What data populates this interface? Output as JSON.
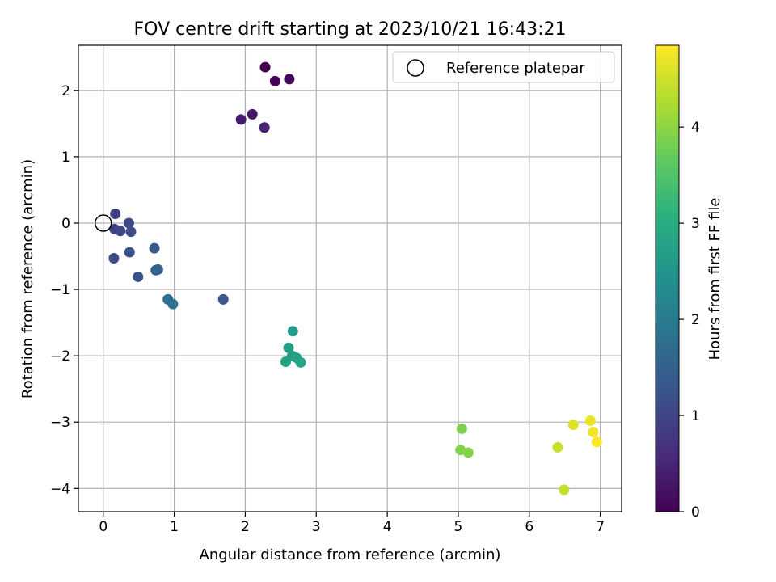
{
  "chart_data": {
    "type": "scatter",
    "title": "FOV centre drift starting at 2023/10/21 16:43:21",
    "xlabel": "Angular distance from reference (arcmin)",
    "ylabel": "Rotation from reference (arcmin)",
    "xlim": [
      -0.35,
      7.3
    ],
    "ylim": [
      -4.35,
      2.68
    ],
    "xticks": [
      0,
      1,
      2,
      3,
      4,
      5,
      6,
      7
    ],
    "yticks": [
      -4,
      -3,
      -2,
      -1,
      0,
      1,
      2
    ],
    "grid": true,
    "legend": {
      "position": "top-right",
      "entries": [
        "Reference platepar"
      ]
    },
    "reference_point": {
      "x": 0,
      "y": 0,
      "label": "Reference platepar"
    },
    "colorbar": {
      "label": "Hours from first FF file",
      "range": [
        0,
        4.85
      ],
      "ticks": [
        0,
        1,
        2,
        3,
        4
      ],
      "colormap": "viridis"
    },
    "points": [
      {
        "x": 2.28,
        "y": 2.35,
        "hours": 0.0
      },
      {
        "x": 2.42,
        "y": 2.14,
        "hours": 0.05
      },
      {
        "x": 2.62,
        "y": 2.17,
        "hours": 0.1
      },
      {
        "x": 2.1,
        "y": 1.64,
        "hours": 0.3
      },
      {
        "x": 1.94,
        "y": 1.56,
        "hours": 0.35
      },
      {
        "x": 2.27,
        "y": 1.44,
        "hours": 0.45
      },
      {
        "x": 0.17,
        "y": 0.14,
        "hours": 0.9
      },
      {
        "x": 0.16,
        "y": -0.09,
        "hours": 0.95
      },
      {
        "x": 0.24,
        "y": -0.12,
        "hours": 1.0
      },
      {
        "x": 0.36,
        "y": 0.0,
        "hours": 1.05
      },
      {
        "x": 0.39,
        "y": -0.13,
        "hours": 1.1
      },
      {
        "x": 0.15,
        "y": -0.53,
        "hours": 1.15
      },
      {
        "x": 0.37,
        "y": -0.44,
        "hours": 1.2
      },
      {
        "x": 0.49,
        "y": -0.81,
        "hours": 1.25
      },
      {
        "x": 0.72,
        "y": -0.38,
        "hours": 1.35
      },
      {
        "x": 0.74,
        "y": -0.71,
        "hours": 1.4
      },
      {
        "x": 0.77,
        "y": -0.7,
        "hours": 1.45
      },
      {
        "x": 1.69,
        "y": -1.15,
        "hours": 1.3
      },
      {
        "x": 0.91,
        "y": -1.15,
        "hours": 1.75
      },
      {
        "x": 0.98,
        "y": -1.22,
        "hours": 1.8
      },
      {
        "x": 2.67,
        "y": -1.63,
        "hours": 2.65
      },
      {
        "x": 2.61,
        "y": -1.88,
        "hours": 2.7
      },
      {
        "x": 2.66,
        "y": -2.0,
        "hours": 2.72
      },
      {
        "x": 2.72,
        "y": -2.03,
        "hours": 2.75
      },
      {
        "x": 2.57,
        "y": -2.09,
        "hours": 2.78
      },
      {
        "x": 2.78,
        "y": -2.1,
        "hours": 2.8
      },
      {
        "x": 5.05,
        "y": -3.1,
        "hours": 3.85
      },
      {
        "x": 5.03,
        "y": -3.42,
        "hours": 3.9
      },
      {
        "x": 5.14,
        "y": -3.46,
        "hours": 3.95
      },
      {
        "x": 6.62,
        "y": -3.04,
        "hours": 4.6
      },
      {
        "x": 6.86,
        "y": -2.98,
        "hours": 4.7
      },
      {
        "x": 6.9,
        "y": -3.15,
        "hours": 4.75
      },
      {
        "x": 6.95,
        "y": -3.3,
        "hours": 4.85
      },
      {
        "x": 6.4,
        "y": -3.38,
        "hours": 4.45
      },
      {
        "x": 6.49,
        "y": -4.02,
        "hours": 4.4
      }
    ]
  }
}
